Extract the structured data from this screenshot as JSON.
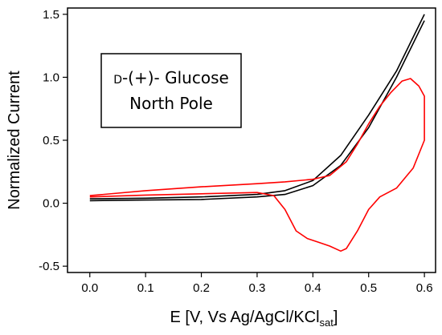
{
  "chart_data": {
    "type": "line",
    "xlabel_main": "E [V, Vs Ag/AgCl/KCl",
    "xlabel_sub": "sat",
    "xlabel_close": "]",
    "ylabel": "Normalized Current",
    "xlim": [
      -0.04,
      0.62
    ],
    "ylim": [
      -0.55,
      1.55
    ],
    "xticks": [
      "0.0",
      "0.1",
      "0.2",
      "0.3",
      "0.4",
      "0.5",
      "0.6"
    ],
    "yticks": [
      "-0.5",
      "0.0",
      "0.5",
      "1.0",
      "1.5"
    ],
    "annotation": {
      "line1_prefix": "D",
      "line1_rest": "-(+)- Glucose",
      "line2": "North Pole"
    },
    "series": [
      {
        "color": "#000000",
        "points": [
          [
            0.0,
            0.02
          ],
          [
            0.1,
            0.025
          ],
          [
            0.2,
            0.03
          ],
          [
            0.3,
            0.05
          ],
          [
            0.35,
            0.07
          ],
          [
            0.4,
            0.14
          ],
          [
            0.45,
            0.3
          ],
          [
            0.5,
            0.6
          ],
          [
            0.55,
            1.0
          ],
          [
            0.6,
            1.45
          ]
        ]
      },
      {
        "color": "#000000",
        "points": [
          [
            0.6,
            1.5
          ],
          [
            0.55,
            1.05
          ],
          [
            0.5,
            0.7
          ],
          [
            0.45,
            0.38
          ],
          [
            0.4,
            0.18
          ],
          [
            0.35,
            0.1
          ],
          [
            0.3,
            0.07
          ],
          [
            0.2,
            0.05
          ],
          [
            0.1,
            0.04
          ],
          [
            0.0,
            0.035
          ]
        ]
      },
      {
        "color": "#ff0000",
        "points": [
          [
            0.0,
            0.06
          ],
          [
            0.1,
            0.1
          ],
          [
            0.2,
            0.13
          ],
          [
            0.3,
            0.155
          ],
          [
            0.35,
            0.17
          ],
          [
            0.4,
            0.19
          ],
          [
            0.43,
            0.22
          ],
          [
            0.46,
            0.33
          ],
          [
            0.48,
            0.47
          ],
          [
            0.5,
            0.63
          ],
          [
            0.52,
            0.77
          ],
          [
            0.54,
            0.88
          ],
          [
            0.56,
            0.97
          ],
          [
            0.575,
            0.99
          ],
          [
            0.59,
            0.93
          ],
          [
            0.6,
            0.85
          ],
          [
            0.6,
            0.5
          ],
          [
            0.58,
            0.28
          ],
          [
            0.55,
            0.12
          ],
          [
            0.52,
            0.05
          ],
          [
            0.5,
            -0.05
          ],
          [
            0.48,
            -0.22
          ],
          [
            0.46,
            -0.36
          ],
          [
            0.45,
            -0.38
          ],
          [
            0.43,
            -0.34
          ],
          [
            0.41,
            -0.31
          ],
          [
            0.39,
            -0.28
          ],
          [
            0.37,
            -0.22
          ],
          [
            0.35,
            -0.05
          ],
          [
            0.33,
            0.06
          ],
          [
            0.3,
            0.085
          ],
          [
            0.2,
            0.075
          ],
          [
            0.1,
            0.065
          ],
          [
            0.0,
            0.05
          ]
        ]
      }
    ]
  }
}
